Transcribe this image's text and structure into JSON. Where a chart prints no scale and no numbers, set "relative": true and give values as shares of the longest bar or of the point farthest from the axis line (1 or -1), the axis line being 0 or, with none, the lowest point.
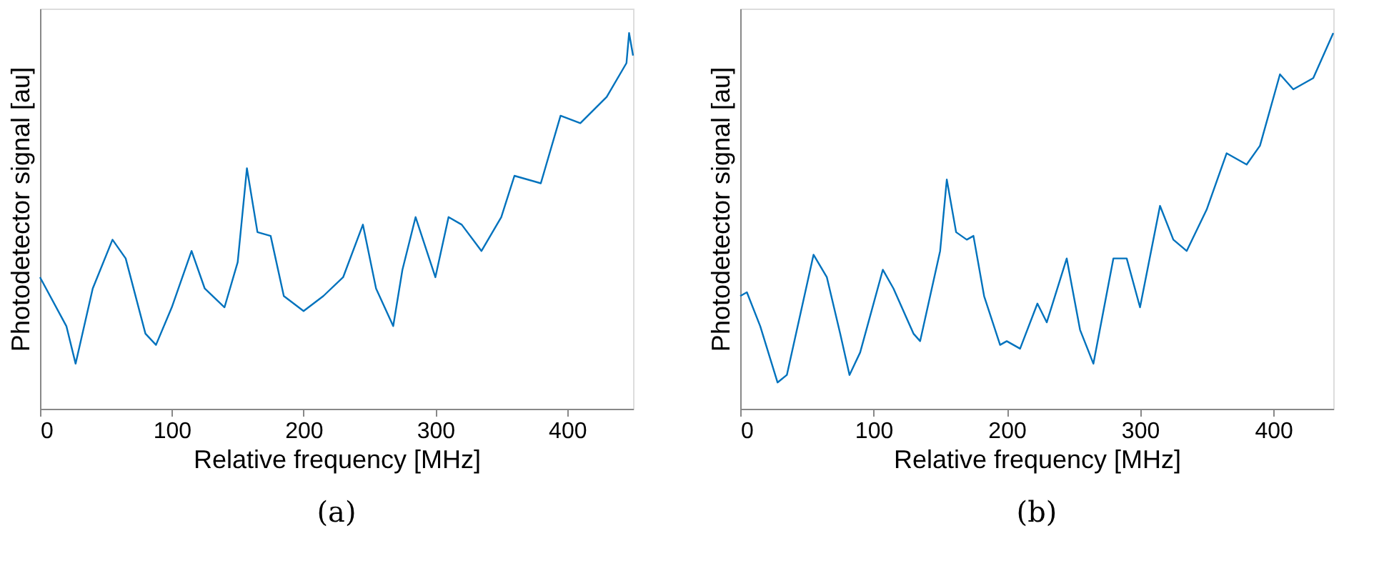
{
  "chart_data": [
    {
      "type": "line",
      "relative": true,
      "xlabel": "Relative frequency [MHz]",
      "ylabel": "Photodetector signal [au]",
      "annotations": [
        "(a)"
      ],
      "xlim": [
        0,
        450
      ],
      "xticks": [
        0,
        100,
        200,
        300,
        400
      ],
      "tick_labels": "x",
      "grid": false,
      "series": [
        {
          "color": "#0072bd",
          "x": [
            0,
            20,
            27,
            40,
            55,
            65,
            80,
            88,
            100,
            115,
            125,
            140,
            150,
            157,
            165,
            175,
            185,
            200,
            215,
            230,
            245,
            255,
            268,
            275,
            285,
            300,
            310,
            320,
            335,
            350,
            360,
            380,
            395,
            410,
            430,
            445,
            447,
            450
          ],
          "values": [
            0.35,
            0.22,
            0.12,
            0.32,
            0.45,
            0.4,
            0.2,
            0.17,
            0.27,
            0.42,
            0.32,
            0.27,
            0.39,
            0.64,
            0.47,
            0.46,
            0.3,
            0.26,
            0.3,
            0.35,
            0.49,
            0.32,
            0.22,
            0.37,
            0.51,
            0.35,
            0.51,
            0.49,
            0.42,
            0.51,
            0.62,
            0.6,
            0.78,
            0.76,
            0.83,
            0.92,
            1.0,
            0.94
          ]
        }
      ]
    },
    {
      "type": "line",
      "relative": true,
      "xlabel": "Relative frequency [MHz]",
      "ylabel": "Photodetector signal [au]",
      "annotations": [
        "(b)"
      ],
      "xlim": [
        0,
        445
      ],
      "xticks": [
        0,
        100,
        200,
        300,
        400
      ],
      "tick_labels": "x",
      "grid": false,
      "series": [
        {
          "color": "#0072bd",
          "x": [
            0,
            5,
            15,
            28,
            35,
            55,
            65,
            75,
            82,
            90,
            107,
            115,
            130,
            135,
            150,
            155,
            162,
            170,
            175,
            183,
            195,
            200,
            210,
            223,
            230,
            245,
            255,
            265,
            280,
            290,
            300,
            315,
            325,
            335,
            350,
            365,
            380,
            390,
            405,
            415,
            430,
            445
          ],
          "values": [
            0.3,
            0.31,
            0.22,
            0.07,
            0.09,
            0.41,
            0.35,
            0.2,
            0.09,
            0.15,
            0.37,
            0.32,
            0.2,
            0.18,
            0.42,
            0.61,
            0.47,
            0.45,
            0.46,
            0.3,
            0.17,
            0.18,
            0.16,
            0.28,
            0.23,
            0.4,
            0.21,
            0.12,
            0.4,
            0.4,
            0.27,
            0.54,
            0.45,
            0.42,
            0.53,
            0.68,
            0.65,
            0.7,
            0.89,
            0.85,
            0.88,
            1.0
          ]
        }
      ]
    }
  ]
}
